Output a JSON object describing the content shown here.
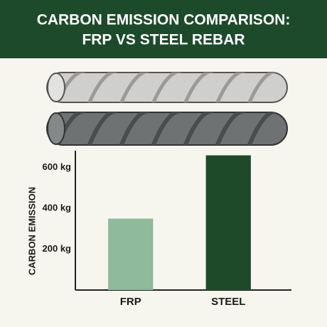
{
  "chart_data": {
    "type": "bar",
    "title": [
      "CARBON EMISSION COMPARISON:",
      "FRP VS STEEL REBAR"
    ],
    "y_label": "CARBON EMISSION",
    "categories": [
      "FRP",
      "STEEL"
    ],
    "values": [
      350,
      660
    ],
    "colors": [
      "#8fba9b",
      "#1e4a2a"
    ],
    "ylim": [
      0,
      700
    ],
    "yticks": [
      {
        "value": 200,
        "label": "200 kg"
      },
      {
        "value": 400,
        "label": "400 kg"
      },
      {
        "value": 600,
        "label": "600 kg"
      }
    ],
    "grid": false
  }
}
